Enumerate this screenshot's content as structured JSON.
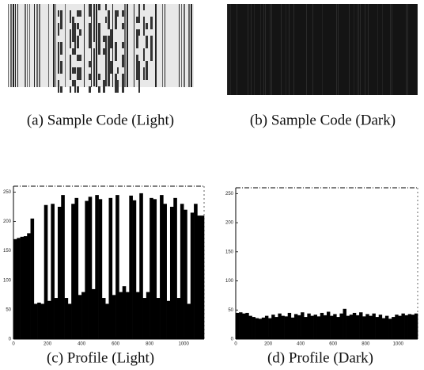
{
  "panels": [
    {
      "caption": "(a) Sample Code (Light)"
    },
    {
      "caption": "(b) Sample Code (Dark)"
    }
  ],
  "chart_data": [
    {
      "type": "area",
      "caption": "(c) Profile (Light)",
      "color": "#000000",
      "x": [
        0,
        20,
        40,
        60,
        80,
        100,
        120,
        140,
        160,
        180,
        200,
        220,
        240,
        260,
        280,
        300,
        320,
        340,
        360,
        380,
        400,
        420,
        440,
        460,
        480,
        500,
        520,
        540,
        560,
        580,
        600,
        620,
        640,
        660,
        680,
        700,
        720,
        740,
        760,
        780,
        800,
        820,
        840,
        860,
        880,
        900,
        920,
        940,
        960,
        980,
        1000,
        1020,
        1040,
        1060,
        1080,
        1100
      ],
      "values": [
        170,
        172,
        174,
        175,
        180,
        205,
        60,
        62,
        60,
        228,
        65,
        230,
        70,
        225,
        245,
        70,
        60,
        230,
        240,
        75,
        80,
        235,
        242,
        85,
        245,
        238,
        70,
        60,
        240,
        75,
        245,
        80,
        90,
        80,
        244,
        236,
        80,
        248,
        70,
        80,
        240,
        238,
        70,
        245,
        230,
        65,
        225,
        240,
        70,
        230,
        220,
        60,
        215,
        230,
        210,
        210
      ],
      "xlim": [
        0,
        1120
      ],
      "ylim": [
        0,
        260
      ],
      "xticks": [
        0,
        200,
        400,
        600,
        800,
        1000
      ],
      "yticks": [
        0,
        50,
        100,
        150,
        200,
        250
      ]
    },
    {
      "type": "area",
      "caption": "(d) Profile (Dark)",
      "color": "#000000",
      "x": [
        0,
        20,
        40,
        60,
        80,
        100,
        120,
        140,
        160,
        180,
        200,
        220,
        240,
        260,
        280,
        300,
        320,
        340,
        360,
        380,
        400,
        420,
        440,
        460,
        480,
        500,
        520,
        540,
        560,
        580,
        600,
        620,
        640,
        660,
        680,
        700,
        720,
        740,
        760,
        780,
        800,
        820,
        840,
        860,
        880,
        900,
        920,
        940,
        960,
        980,
        1000,
        1020,
        1040,
        1060,
        1080,
        1100
      ],
      "values": [
        45,
        46,
        44,
        45,
        40,
        38,
        36,
        35,
        37,
        40,
        36,
        42,
        38,
        44,
        40,
        39,
        45,
        37,
        43,
        41,
        46,
        38,
        44,
        40,
        42,
        39,
        45,
        41,
        47,
        40,
        43,
        38,
        44,
        52,
        40,
        42,
        45,
        41,
        46,
        39,
        43,
        40,
        44,
        38,
        42,
        36,
        40,
        35,
        38,
        42,
        40,
        44,
        41,
        43,
        42,
        44
      ],
      "xlim": [
        0,
        1120
      ],
      "ylim": [
        0,
        260
      ],
      "xticks": [
        0,
        200,
        400,
        600,
        800,
        1000
      ],
      "yticks": [
        0,
        50,
        100,
        150,
        200,
        250
      ]
    }
  ]
}
